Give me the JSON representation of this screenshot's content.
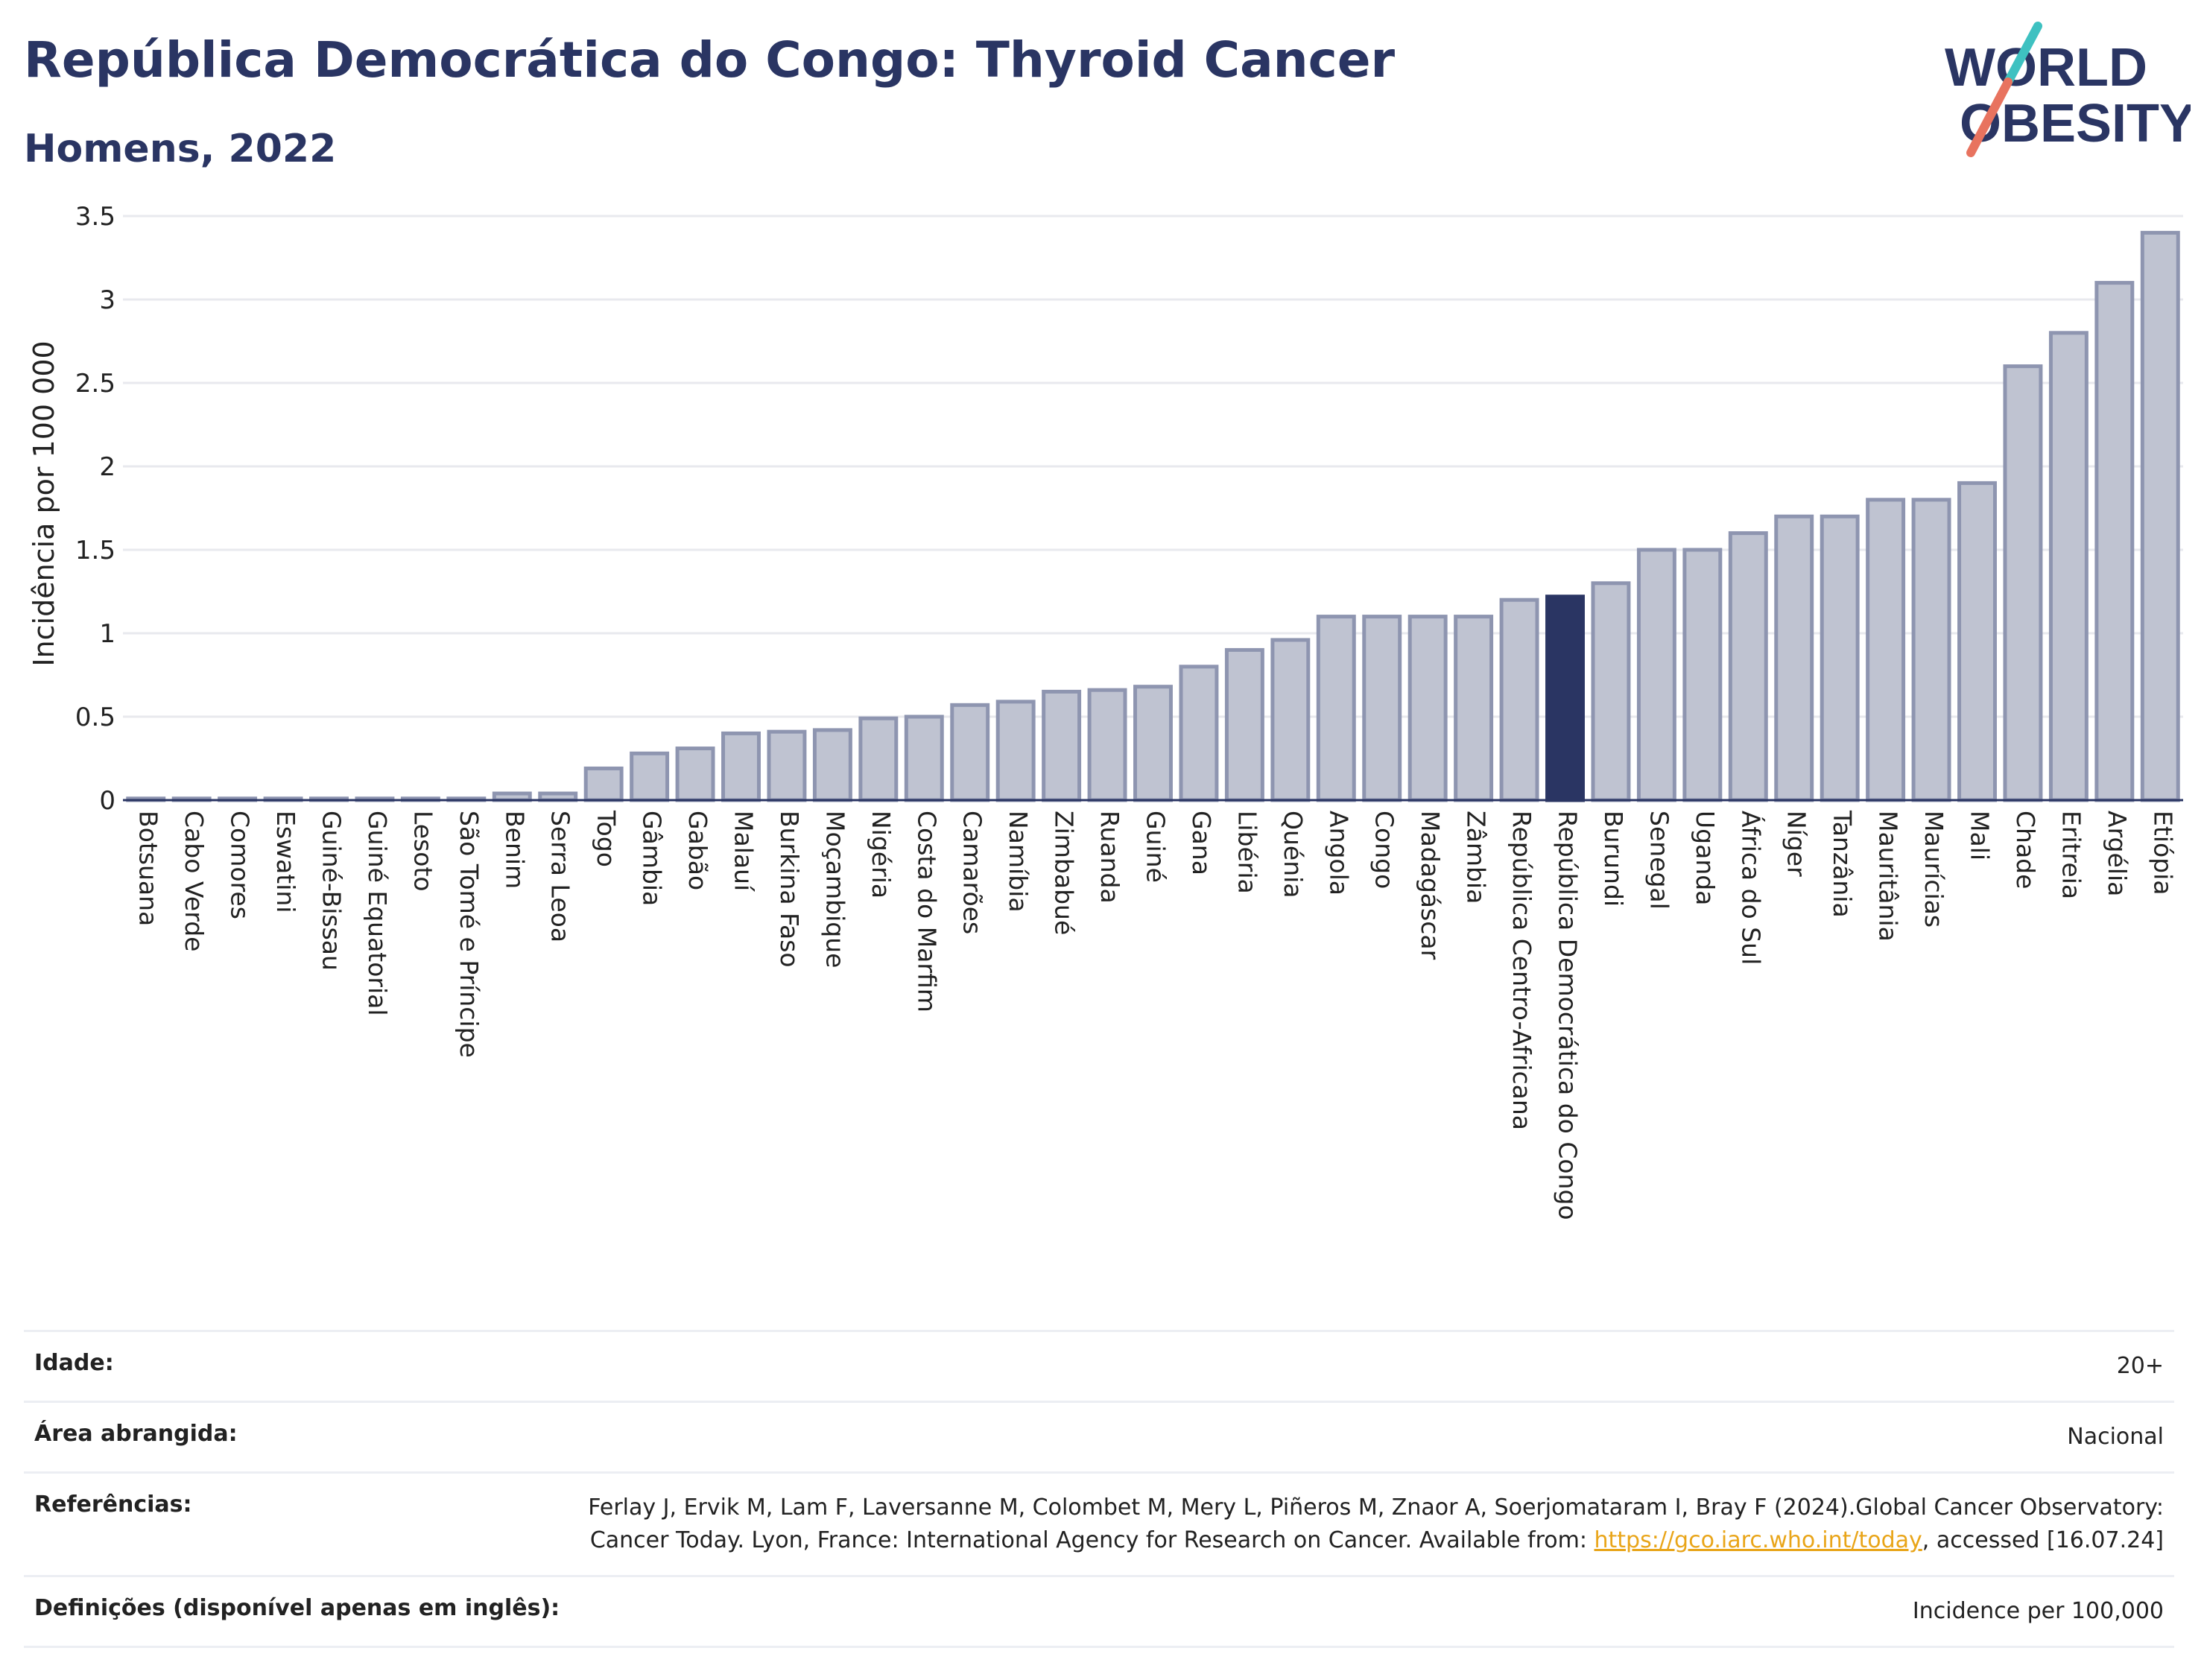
{
  "header": {
    "title": "República Democrática do Congo: Thyroid Cancer",
    "subtitle": "Homens, 2022"
  },
  "logo": {
    "line1": "WORLD",
    "line2": "OBESITY",
    "accent_colors": [
      "#3ec1c1",
      "#e8735f"
    ]
  },
  "colors": {
    "bar": "#bfc3d1",
    "bar_stroke": "#8e95b0",
    "highlight": "#2a3563",
    "grid": "#e8e9ee"
  },
  "chart_data": {
    "type": "bar",
    "title": "República Democrática do Congo: Thyroid Cancer",
    "subtitle": "Homens, 2022",
    "ylabel": "Incidência por 100 000",
    "xlabel": "",
    "ylim": [
      0,
      3.5
    ],
    "yticks": [
      0,
      0.5,
      1,
      1.5,
      2,
      2.5,
      3,
      3.5
    ],
    "ytick_labels": [
      "0",
      "0.5",
      "1",
      "1.5",
      "2",
      "2.5",
      "3",
      "3.5"
    ],
    "grid": true,
    "highlight": "República Democrática do Congo",
    "categories": [
      "Botsuana",
      "Cabo Verde",
      "Comores",
      "Eswatini",
      "Guiné-Bissau",
      "Guiné Equatorial",
      "Lesoto",
      "São Tomé e Príncipe",
      "Benim",
      "Serra Leoa",
      "Togo",
      "Gâmbia",
      "Gabão",
      "Malauí",
      "Burkina Faso",
      "Moçambique",
      "Nigéria",
      "Costa do Marfim",
      "Camarões",
      "Namíbia",
      "Zimbabué",
      "Ruanda",
      "Guiné",
      "Gana",
      "Libéria",
      "Quénia",
      "Angola",
      "Congo",
      "Madagáscar",
      "Zâmbia",
      "República Centro-Africana",
      "República Democrática do Congo",
      "Burundi",
      "Senegal",
      "Uganda",
      "África do Sul",
      "Níger",
      "Tanzânia",
      "Mauritânia",
      "Maurícias",
      "Mali",
      "Chade",
      "Eritreia",
      "Argélia",
      "Etiópia"
    ],
    "values": [
      0.01,
      0.01,
      0.01,
      0.01,
      0.01,
      0.01,
      0.01,
      0.01,
      0.04,
      0.04,
      0.19,
      0.28,
      0.31,
      0.4,
      0.41,
      0.42,
      0.49,
      0.5,
      0.57,
      0.59,
      0.65,
      0.66,
      0.68,
      0.8,
      0.9,
      0.96,
      1.1,
      1.1,
      1.1,
      1.1,
      1.2,
      1.22,
      1.3,
      1.5,
      1.5,
      1.6,
      1.7,
      1.7,
      1.8,
      1.8,
      1.9,
      2.6,
      2.8,
      3.1,
      3.4
    ]
  },
  "meta": {
    "age_label": "Idade:",
    "age_value": "20+",
    "area_label": "Área abrangida:",
    "area_value": "Nacional",
    "ref_label": "Referências:",
    "ref_text_1": "Ferlay J, Ervik M, Lam F, Laversanne M, Colombet M, Mery L, Piñeros M, Znaor A, Soerjomataram I, Bray F (2024).Global Cancer Observatory: Cancer Today. Lyon, France: International Agency for Research on Cancer. Available from: ",
    "ref_link": "https://gco.iarc.who.int/today",
    "ref_text_2": ", accessed [16.07.24]",
    "def_label": "Definições (disponível apenas em inglês):",
    "def_value": "Incidence per 100,000"
  }
}
